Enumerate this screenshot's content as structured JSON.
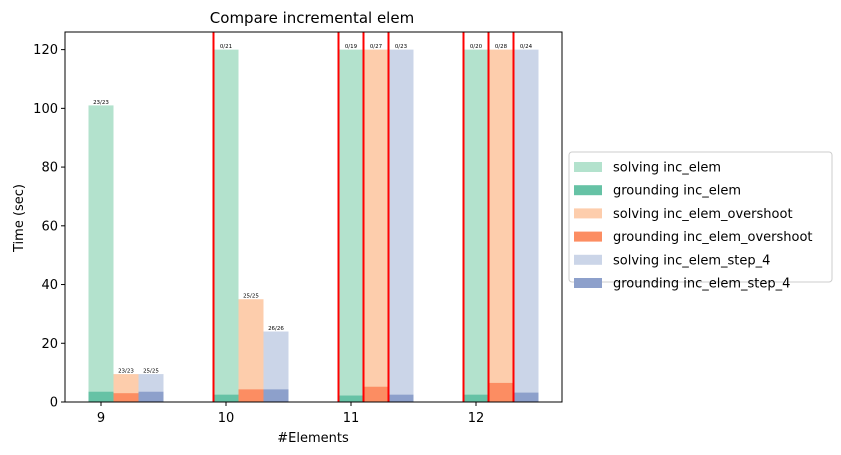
{
  "chart_data": {
    "type": "bar",
    "title": "Compare incremental elem",
    "xlabel": "#Elements",
    "ylabel": "Time (sec)",
    "categories": [
      "9",
      "10",
      "11",
      "12"
    ],
    "ylim": [
      0,
      126
    ],
    "yticks": [
      0,
      20,
      40,
      60,
      80,
      100,
      120
    ],
    "grid": false,
    "legend_placement": "center-right outside",
    "series": [
      {
        "name": "inc_elem",
        "solving_label": "solving inc_elem",
        "grounding_label": "grounding inc_elem",
        "solving_color": "#b3e2cd",
        "grounding_color": "#66c2a5",
        "solving": [
          101,
          120,
          120,
          120
        ],
        "grounding": [
          3.5,
          2.5,
          2.2,
          2.5
        ],
        "annotations": [
          "23/23",
          "0/21",
          "0/19",
          "0/20"
        ]
      },
      {
        "name": "inc_elem_overshoot",
        "solving_label": "solving inc_elem_overshoot",
        "grounding_label": "grounding inc_elem_overshoot",
        "solving_color": "#fdcdac",
        "grounding_color": "#fc8d62",
        "solving": [
          9.5,
          35,
          120,
          120
        ],
        "grounding": [
          3.0,
          4.3,
          5.2,
          6.5
        ],
        "annotations": [
          "23/23",
          "25/25",
          "0/27",
          "0/28"
        ]
      },
      {
        "name": "inc_elem_step_4",
        "solving_label": "solving inc_elem_step_4",
        "grounding_label": "grounding inc_elem_step_4",
        "solving_color": "#cbd5e8",
        "grounding_color": "#8da0cb",
        "solving": [
          9.5,
          24,
          120,
          120
        ],
        "grounding": [
          3.5,
          4.3,
          2.5,
          3.2
        ],
        "annotations": [
          "25/25",
          "26/26",
          "0/23",
          "0/24"
        ]
      }
    ],
    "timeout_lines": [
      {
        "category": "10",
        "series": "inc_elem"
      },
      {
        "category": "11",
        "series": "inc_elem"
      },
      {
        "category": "11",
        "series": "inc_elem_overshoot"
      },
      {
        "category": "11",
        "series": "inc_elem_step_4"
      },
      {
        "category": "12",
        "series": "inc_elem"
      },
      {
        "category": "12",
        "series": "inc_elem_overshoot"
      },
      {
        "category": "12",
        "series": "inc_elem_step_4"
      }
    ],
    "timeout_line_color": "#ff0000"
  }
}
